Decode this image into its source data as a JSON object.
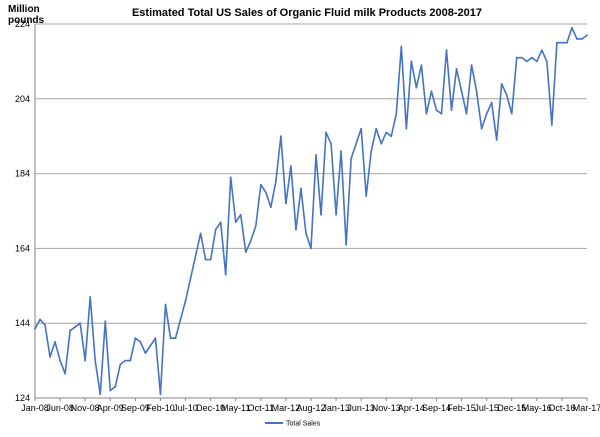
{
  "chart_data": {
    "type": "line",
    "title": "Estimated Total US Sales of Organic Fluid milk Products 2008-2017",
    "ylabel": "Million pounds",
    "xlabel": "",
    "ylim": [
      124,
      224
    ],
    "yticks": [
      124,
      144,
      164,
      184,
      204,
      224
    ],
    "grid": true,
    "legend_position": "bottom-center",
    "colors": {
      "series": "#4472C4",
      "grid": "#A6A6A6",
      "axis": "#868686"
    },
    "x_tick_labels": [
      "Jan-08",
      "Jun-08",
      "Nov-08",
      "Apr-09",
      "Sep-09",
      "Feb-10",
      "Jul-10",
      "Dec-10",
      "May-11",
      "Oct-11",
      "Mar-12",
      "Aug-12",
      "Jan-13",
      "Jun-13",
      "Nov-13",
      "Apr-14",
      "Sep-14",
      "Feb-15",
      "Jul-15",
      "Dec-15",
      "May-16",
      "Oct-16",
      "Mar-17"
    ],
    "series": [
      {
        "name": "Total Sales",
        "start": "Jan-08",
        "frequency": "monthly",
        "values": [
          142.5,
          145,
          143.5,
          135,
          139,
          134,
          130.5,
          142,
          143,
          144,
          134,
          151,
          134,
          125,
          144.5,
          126,
          127,
          133,
          134,
          134,
          140,
          139,
          136,
          138,
          140,
          125,
          149,
          140,
          140,
          145,
          150,
          156,
          162,
          168,
          161,
          161,
          169,
          171,
          157,
          183,
          171,
          173,
          163,
          166,
          170,
          181,
          179,
          175,
          182,
          194,
          176,
          186,
          169,
          180,
          168,
          164,
          189,
          173,
          195,
          192,
          173,
          190,
          165,
          188,
          192,
          196,
          178,
          190,
          196,
          192,
          195,
          194,
          200,
          218,
          196,
          214,
          207,
          213,
          200,
          206,
          201,
          200,
          217,
          201,
          212,
          206,
          200,
          213,
          206,
          196,
          200,
          203,
          193,
          208,
          205,
          200,
          215,
          215,
          214,
          215,
          214,
          217,
          214,
          197,
          219,
          219,
          219,
          223,
          220,
          220,
          221
        ]
      }
    ]
  }
}
